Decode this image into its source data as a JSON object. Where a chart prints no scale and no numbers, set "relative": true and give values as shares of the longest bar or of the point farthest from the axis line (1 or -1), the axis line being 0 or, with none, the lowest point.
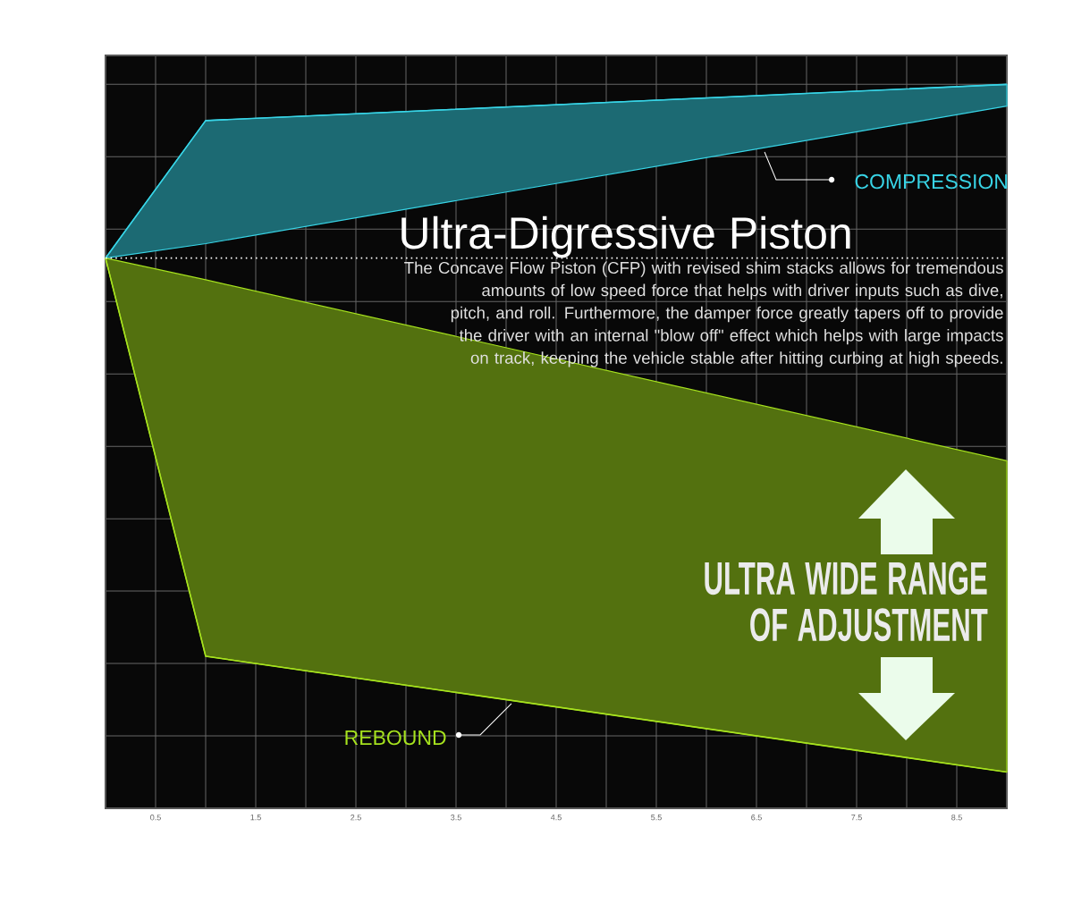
{
  "chart_data": {
    "type": "line",
    "relative": true,
    "title": "Ultra-Digressive Piston",
    "subtitle": "The Concave Flow Piston (CFP) with revised shim stacks allows for tremendous amounts of low speed force that helps with driver inputs such as dive, pitch, and roll. Furthermore, the damper force greatly tapers off to provide the driver with an internal \"blow off\" effect which helps with large impacts on track, keeping the vehicle stable after hitting curbing at high speeds.",
    "annotations": [
      "ULTRA WIDE RANGE OF ADJUSTMENT"
    ],
    "x": [
      0,
      1,
      9
    ],
    "xlim": [
      0,
      9
    ],
    "xticks": [
      0.5,
      {
        "value": 1,
        "label": null
      },
      1.5,
      {
        "value": 2,
        "label": null
      },
      2.5,
      {
        "value": 3,
        "label": null
      },
      3.5,
      {
        "value": 4,
        "label": null
      },
      4.5,
      {
        "value": 5,
        "label": null
      },
      5.5,
      {
        "value": 6,
        "label": null
      },
      6.5,
      {
        "value": 7,
        "label": null
      },
      7.5,
      {
        "value": 8,
        "label": null
      },
      8.5
    ],
    "grid": true,
    "ref_lines": [
      {
        "axis": "y",
        "value": 0.76,
        "color": "#ffffff",
        "line_style": "dotted"
      }
    ],
    "series": [
      {
        "name": "COMPRESSION",
        "color": "#38d4e6",
        "values": [
          0.76,
          0.95,
          1.0
        ],
        "lower": [
          0.76,
          0.78,
          0.97
        ],
        "upper": [
          0.76,
          0.95,
          1.0
        ]
      },
      {
        "name": "REBOUND",
        "color": "#a6e21e",
        "values": [
          0.76,
          0.21,
          0.05
        ],
        "lower": [
          0.76,
          0.21,
          0.05
        ],
        "upper": [
          0.76,
          0.73,
          0.48
        ]
      }
    ]
  }
}
